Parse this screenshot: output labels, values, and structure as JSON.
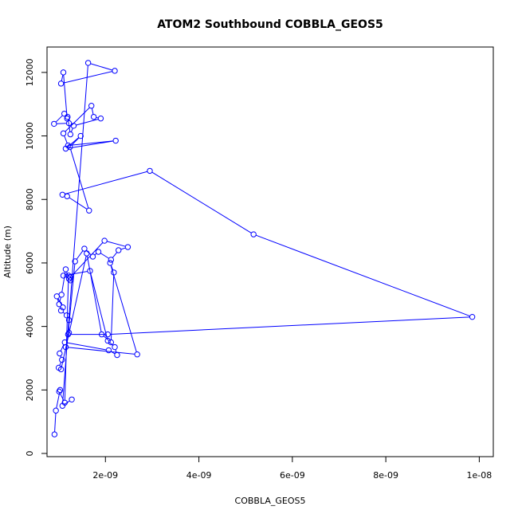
{
  "chart_data": {
    "type": "line",
    "title": "ATOM2 Southbound COBBLA_GEOS5",
    "xlabel": "COBBLA_GEOS5",
    "ylabel": "Altitude (m)",
    "xlim": [
      7.5e-10,
      1.03e-08
    ],
    "ylim": [
      -100,
      12800
    ],
    "x_ticks": [
      2e-09,
      4e-09,
      6e-09,
      8e-09,
      1e-08
    ],
    "x_tick_labels": [
      "2e-09",
      "4e-09",
      "6e-09",
      "8e-09",
      "1e-08"
    ],
    "y_ticks": [
      0,
      2000,
      4000,
      6000,
      8000,
      10000,
      12000
    ],
    "y_tick_labels": [
      "0",
      "2000",
      "4000",
      "6000",
      "8000",
      "10000",
      "12000"
    ],
    "grid": false,
    "series_color": "#0000ff",
    "series": [
      {
        "marker": "open-circle",
        "x": [
          1.28e-09,
          1.08e-09,
          1.63e-09,
          2.2e-09,
          1.05e-09,
          1.1e-09,
          1.18e-09,
          1.22e-09,
          9e-10,
          1.12e-09,
          1.19e-09,
          1.25e-09,
          1.32e-09,
          1.9e-09,
          1.75e-09,
          1.7e-09,
          1.1e-09,
          1.2e-09,
          2.22e-09,
          1.15e-09,
          1.47e-09,
          1.24e-09,
          1.65e-09,
          1.18e-09,
          1.08e-09,
          2.95e-09,
          5.17e-09,
          9.85e-09,
          2.05e-09,
          1.2e-09,
          1.35e-09,
          1.55e-09,
          1.73e-09,
          1.85e-09,
          2.12e-09,
          2.28e-09,
          2.48e-09,
          1.98e-09,
          1.25e-09,
          1.1e-09,
          1.67e-09,
          2.05e-09,
          2.2e-09,
          2.25e-09,
          2.07e-09,
          1.13e-09,
          1.02e-09,
          1.07e-09,
          1e-09,
          1.05e-09,
          1.6e-09,
          1.92e-09,
          2.12e-09,
          2.18e-09,
          2.1e-09,
          2.68e-09,
          1.15e-09,
          1.22e-09,
          1.22e-09,
          1.17e-09,
          1.05e-09,
          1.09e-09,
          9.6e-10,
          1.01e-09,
          1.06e-09,
          1.15e-09,
          1.22e-09,
          1.25e-09,
          1.21e-09,
          1.13e-09,
          1.01e-09,
          1.03e-09,
          9.4e-10,
          9.1e-10
        ],
        "y": [
          1700,
          1500,
          12300,
          12050,
          11650,
          12000,
          10550,
          10400,
          10380,
          10700,
          10600,
          10050,
          10320,
          10550,
          10600,
          10950,
          10080,
          9700,
          9850,
          9600,
          10000,
          9650,
          7650,
          8100,
          8150,
          8900,
          6900,
          4300,
          3750,
          3750,
          6050,
          6450,
          6200,
          6350,
          6100,
          6400,
          6500,
          6700,
          5550,
          5600,
          5750,
          3550,
          3350,
          3100,
          3250,
          3500,
          3150,
          2950,
          2700,
          2650,
          6300,
          3750,
          3500,
          5700,
          6000,
          3120,
          3350,
          3800,
          4200,
          4350,
          4500,
          4600,
          4950,
          4700,
          5000,
          5800,
          5500,
          5450,
          5600,
          1600,
          1950,
          2000,
          1350,
          600
        ]
      }
    ]
  }
}
